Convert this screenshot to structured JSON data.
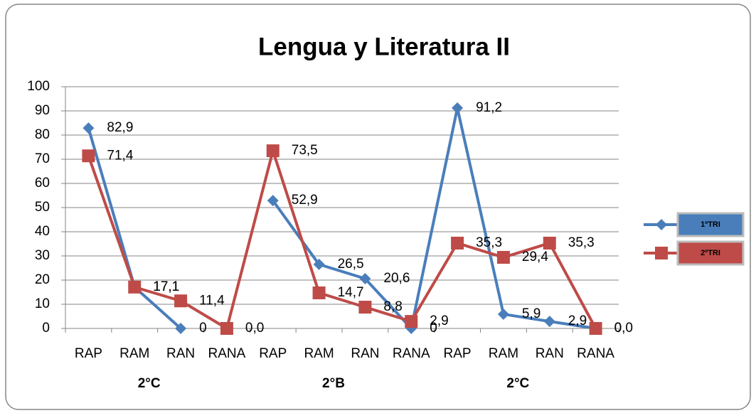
{
  "chart_data": {
    "type": "line",
    "title": "Lengua y Literatura II",
    "categories": [
      "RAP",
      "RAM",
      "RAN",
      "RANA",
      "RAP",
      "RAM",
      "RAN",
      "RANA",
      "RAP",
      "RAM",
      "RAN",
      "RANA"
    ],
    "groups": [
      "2°C",
      "2°B",
      "2°C"
    ],
    "series": [
      {
        "name": "1ºTRI",
        "color": "#4a7ebb",
        "marker": "diamond",
        "values": [
          82.9,
          17.1,
          0,
          null,
          52.9,
          26.5,
          20.6,
          0,
          91.2,
          5.9,
          2.9,
          0
        ],
        "value_labels": [
          "82,9",
          "17,1",
          "0",
          null,
          "52,9",
          "26,5",
          "20,6",
          "0",
          "91,2",
          "5,9",
          "2,9",
          "0"
        ]
      },
      {
        "name": "2ºTRI",
        "color": "#be4b48",
        "marker": "square",
        "values": [
          71.4,
          17.1,
          11.4,
          0,
          73.5,
          14.7,
          8.8,
          2.9,
          35.3,
          29.4,
          35.3,
          0
        ],
        "value_labels": [
          "71,4",
          "17,1",
          "11,4",
          "0,0",
          "73,5",
          "14,7",
          "8,8",
          "2,9",
          "35,3",
          "29,4",
          "35,3",
          "0,0"
        ]
      }
    ],
    "ylim": [
      0,
      100
    ],
    "yticks": [
      0,
      10,
      20,
      30,
      40,
      50,
      60,
      70,
      80,
      90,
      100
    ],
    "grid": true,
    "legend": "right"
  }
}
